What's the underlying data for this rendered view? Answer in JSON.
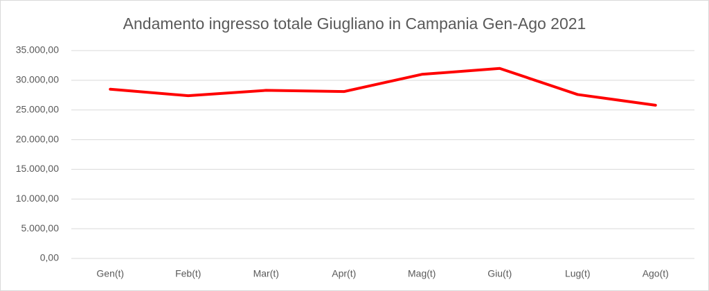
{
  "chart_data": {
    "type": "line",
    "title": "Andamento ingresso totale Giugliano in Campania Gen-Ago 2021",
    "categories": [
      "Gen(t)",
      "Feb(t)",
      "Mar(t)",
      "Apr(t)",
      "Mag(t)",
      "Giu(t)",
      "Lug(t)",
      "Ago(t)"
    ],
    "series": [
      {
        "color": "#ff0000",
        "values": [
          28500,
          27400,
          28300,
          28100,
          31000,
          32000,
          27600,
          25800
        ]
      }
    ],
    "ylim": [
      0,
      35000
    ],
    "yticks": [
      {
        "value": 0,
        "label": "0,00"
      },
      {
        "value": 5000,
        "label": "5.000,00"
      },
      {
        "value": 10000,
        "label": "10.000,00"
      },
      {
        "value": 15000,
        "label": "15.000,00"
      },
      {
        "value": 20000,
        "label": "20.000,00"
      },
      {
        "value": 25000,
        "label": "25.000,00"
      },
      {
        "value": 30000,
        "label": "30.000,00"
      },
      {
        "value": 35000,
        "label": "35.000,00"
      }
    ],
    "grid": true
  }
}
